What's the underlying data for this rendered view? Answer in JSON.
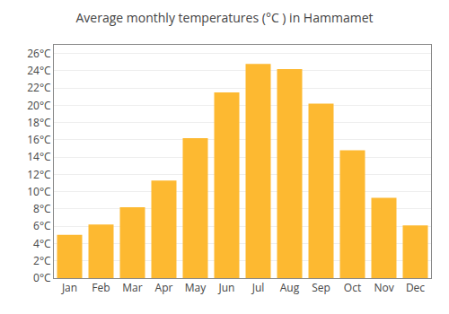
{
  "chart_data": {
    "type": "bar",
    "title": "Average monthly temperatures (°C ) in Hammamet",
    "categories": [
      "Jan",
      "Feb",
      "Mar",
      "Apr",
      "May",
      "Jun",
      "Jul",
      "Aug",
      "Sep",
      "Oct",
      "Nov",
      "Dec"
    ],
    "values": [
      5.0,
      6.2,
      8.2,
      11.3,
      16.2,
      21.5,
      24.8,
      24.2,
      20.2,
      14.8,
      9.3,
      6.1
    ],
    "color": "#FDB931",
    "ylim": [
      0,
      27
    ],
    "yticks": [
      {
        "value": 0,
        "label": "0°C"
      },
      {
        "value": 2,
        "label": "2°C"
      },
      {
        "value": 4,
        "label": "4°C"
      },
      {
        "value": 6,
        "label": "6°C"
      },
      {
        "value": 8,
        "label": "8°C"
      },
      {
        "value": 10,
        "label": "10°C"
      },
      {
        "value": 12,
        "label": "12°C"
      },
      {
        "value": 14,
        "label": "14°C"
      },
      {
        "value": 16,
        "label": "16°C"
      },
      {
        "value": 18,
        "label": "18°C"
      },
      {
        "value": 20,
        "label": "20°C"
      },
      {
        "value": 22,
        "label": "22°C"
      },
      {
        "value": 24,
        "label": "24°C"
      },
      {
        "value": 26,
        "label": "26°C"
      }
    ],
    "grid": true
  }
}
